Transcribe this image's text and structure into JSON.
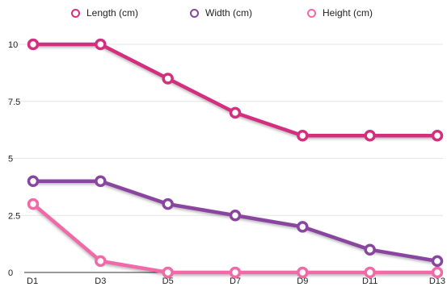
{
  "chart_data": {
    "type": "line",
    "categories": [
      "D1",
      "D3",
      "D5",
      "D7",
      "D9",
      "D11",
      "D13"
    ],
    "series": [
      {
        "name": "Length (cm)",
        "color": "#d42f7f",
        "values": [
          10,
          10,
          8.5,
          7,
          6,
          6,
          6
        ]
      },
      {
        "name": "Width (cm)",
        "color": "#8a45a0",
        "values": [
          4,
          4,
          3,
          2.5,
          2,
          1,
          0.5
        ]
      },
      {
        "name": "Height (cm)",
        "color": "#f06aa8",
        "values": [
          3,
          0.5,
          0,
          0,
          0,
          0,
          0
        ]
      }
    ],
    "yticks": [
      "0",
      "2.5",
      "5",
      "7.5",
      "10"
    ],
    "ylim": [
      0,
      10
    ],
    "grid": "horizontal",
    "legend": "top-center",
    "title": "",
    "xlabel": "",
    "ylabel": ""
  }
}
